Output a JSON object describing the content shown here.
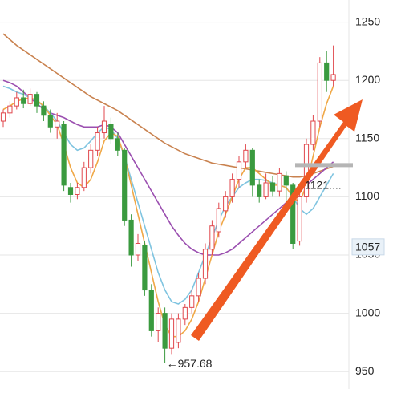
{
  "chart_data": {
    "type": "candlestick",
    "up_color": "#e0474c",
    "down_color": "#3a9a3f",
    "ylim": [
      935,
      1269
    ],
    "yticks": [
      950,
      1000,
      1050,
      1100,
      1150,
      1200,
      1250
    ],
    "grid": true,
    "open": [
      1165,
      1172,
      1178,
      1185,
      1180,
      1188,
      1178,
      1170,
      1160,
      1162,
      1108,
      1102,
      1108,
      1125,
      1140,
      1155,
      1162,
      1150,
      1140,
      1080,
      1050,
      1058,
      1020,
      985,
      1000,
      970,
      975,
      995,
      1005,
      1015,
      1030,
      1055,
      1070,
      1088,
      1100,
      1115,
      1130,
      1140,
      1110,
      1100,
      1112,
      1105,
      1118,
      1110,
      1062,
      1100,
      1145,
      1165,
      1215,
      1200
    ],
    "close": [
      1172,
      1178,
      1185,
      1180,
      1188,
      1178,
      1170,
      1160,
      1165,
      1110,
      1102,
      1108,
      1125,
      1140,
      1155,
      1165,
      1150,
      1140,
      1080,
      1050,
      1060,
      1020,
      985,
      1000,
      970,
      995,
      995,
      1005,
      1015,
      1030,
      1055,
      1075,
      1090,
      1100,
      1115,
      1130,
      1140,
      1110,
      1100,
      1112,
      1105,
      1120,
      1110,
      1060,
      1100,
      1145,
      1165,
      1215,
      1200,
      1205
    ],
    "high": [
      1175,
      1182,
      1190,
      1192,
      1193,
      1190,
      1182,
      1175,
      1172,
      1165,
      1112,
      1112,
      1130,
      1145,
      1160,
      1178,
      1168,
      1155,
      1142,
      1085,
      1068,
      1062,
      1025,
      1005,
      1005,
      1000,
      1000,
      1008,
      1020,
      1035,
      1060,
      1080,
      1095,
      1105,
      1120,
      1135,
      1145,
      1142,
      1115,
      1120,
      1118,
      1125,
      1122,
      1112,
      1105,
      1150,
      1170,
      1220,
      1225,
      1230
    ],
    "low": [
      1160,
      1168,
      1175,
      1176,
      1178,
      1172,
      1165,
      1155,
      1150,
      1105,
      1095,
      1098,
      1105,
      1120,
      1135,
      1150,
      1145,
      1135,
      1075,
      1040,
      1045,
      1015,
      980,
      975,
      957.68,
      965,
      970,
      990,
      1000,
      1010,
      1025,
      1050,
      1065,
      1082,
      1095,
      1108,
      1125,
      1100,
      1095,
      1098,
      1100,
      1100,
      1095,
      1055,
      1058,
      1095,
      1140,
      1160,
      1190,
      1195
    ],
    "series": [
      {
        "color": "#c9824f",
        "values": [
          1240,
          1235,
          1230,
          1226,
          1222,
          1218,
          1214,
          1210,
          1206,
          1202,
          1198,
          1194,
          1190,
          1186,
          1183,
          1180,
          1177,
          1174,
          1170,
          1166,
          1162,
          1158,
          1154,
          1150,
          1146,
          1143,
          1140,
          1137,
          1135,
          1133,
          1131,
          1129,
          1128,
          1127,
          1126,
          1125,
          1124,
          1123,
          1122,
          1121,
          1120,
          1119,
          1118,
          1117,
          1117,
          1118,
          1120,
          1122,
          1124,
          1126
        ]
      },
      {
        "color": "#9b4fb0",
        "values": [
          1200,
          1198,
          1195,
          1190,
          1185,
          1180,
          1175,
          1172,
          1170,
          1168,
          1165,
          1162,
          1160,
          1160,
          1160,
          1162,
          1160,
          1155,
          1145,
          1135,
          1125,
          1115,
          1105,
          1095,
          1085,
          1075,
          1067,
          1060,
          1055,
          1052,
          1050,
          1050,
          1050,
          1052,
          1055,
          1060,
          1065,
          1070,
          1075,
          1080,
          1085,
          1090,
          1095,
          1100,
          1105,
          1110,
          1115,
          1120,
          1125,
          1130
        ]
      },
      {
        "color": "#7fc4e0",
        "values": [
          1195,
          1193,
          1190,
          1188,
          1185,
          1182,
          1178,
          1172,
          1165,
          1155,
          1145,
          1140,
          1142,
          1148,
          1155,
          1160,
          1158,
          1150,
          1135,
          1115,
          1095,
          1075,
          1055,
          1035,
          1020,
          1010,
          1008,
          1012,
          1020,
          1035,
          1050,
          1065,
          1080,
          1092,
          1100,
          1108,
          1112,
          1115,
          1115,
          1114,
          1112,
          1110,
          1108,
          1100,
          1090,
          1085,
          1090,
          1100,
          1110,
          1120
        ]
      },
      {
        "color": "#f0a847",
        "values": [
          1175,
          1178,
          1182,
          1184,
          1185,
          1183,
          1178,
          1170,
          1162,
          1145,
          1125,
          1112,
          1108,
          1115,
          1130,
          1148,
          1155,
          1152,
          1135,
          1110,
          1085,
          1060,
          1035,
          1010,
          990,
          980,
          980,
          985,
          995,
          1010,
          1030,
          1050,
          1070,
          1085,
          1100,
          1115,
          1125,
          1125,
          1120,
          1115,
          1110,
          1110,
          1108,
          1100,
          1095,
          1110,
          1135,
          1160,
          1180,
          1195
        ]
      }
    ],
    "low_label": "←957.68",
    "reference": {
      "value": 1121,
      "label": "1121...."
    },
    "price_tag": 1057
  }
}
